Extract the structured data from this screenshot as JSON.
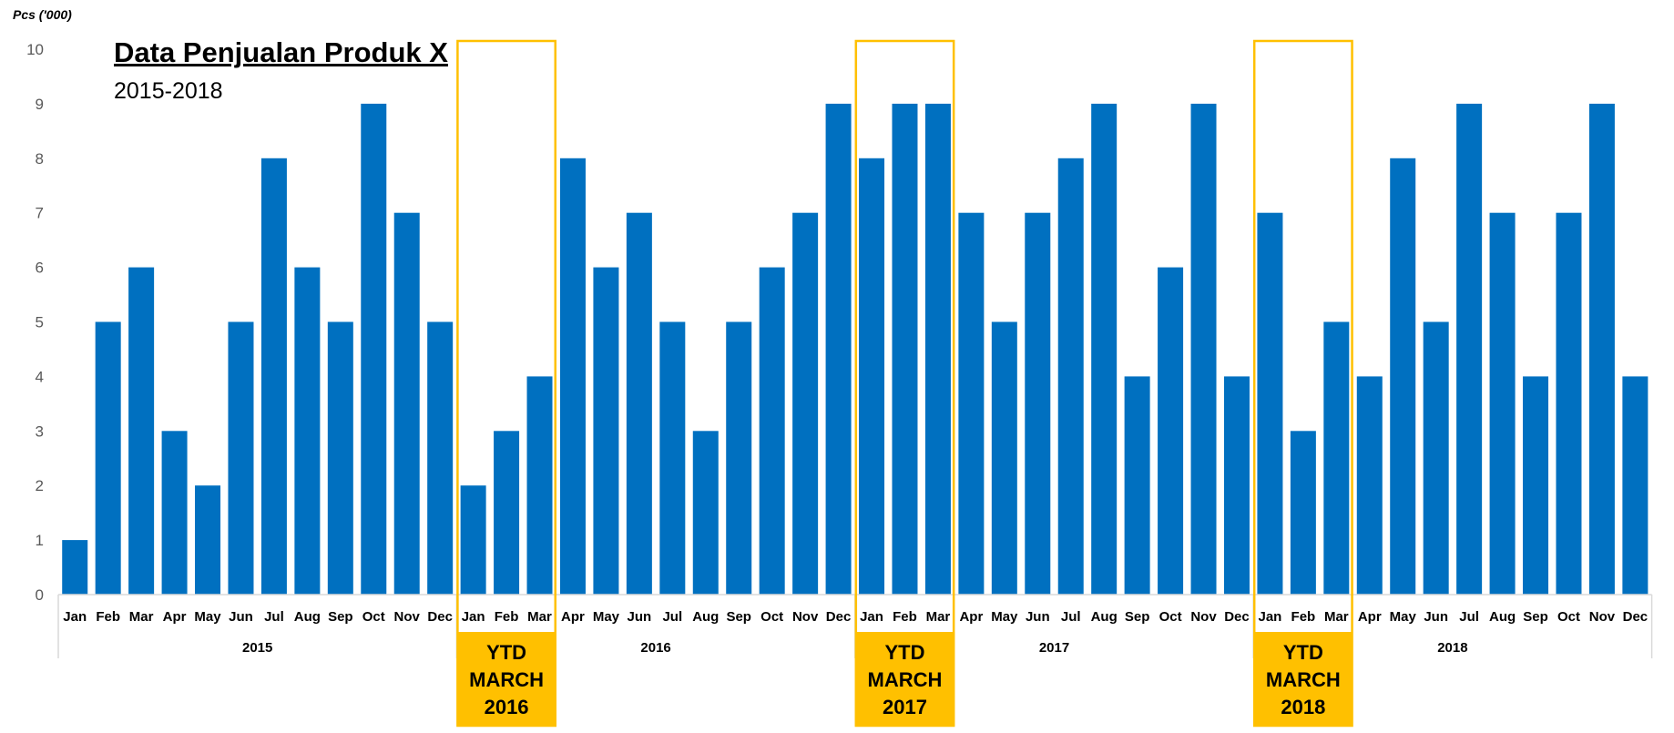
{
  "chart_data": {
    "type": "bar",
    "title": "Data Penjualan Produk X",
    "subtitle": "2015-2018",
    "ylabel": "Pcs ('000)",
    "ylim": [
      0,
      10
    ],
    "yticks": [
      0,
      1,
      2,
      3,
      4,
      5,
      6,
      7,
      8,
      9,
      10
    ],
    "grid": false,
    "bar_color": "#0070C0",
    "highlight_color": "#FFC000",
    "months": [
      "Jan",
      "Feb",
      "Mar",
      "Apr",
      "May",
      "Jun",
      "Jul",
      "Aug",
      "Sep",
      "Oct",
      "Nov",
      "Dec"
    ],
    "years": [
      {
        "year": "2015",
        "values": [
          1,
          5,
          6,
          3,
          2,
          5,
          8,
          6,
          5,
          9,
          7,
          5
        ]
      },
      {
        "year": "2016",
        "values": [
          2,
          3,
          4,
          8,
          6,
          7,
          5,
          3,
          5,
          6,
          7,
          9
        ]
      },
      {
        "year": "2017",
        "values": [
          8,
          9,
          9,
          7,
          5,
          7,
          8,
          9,
          4,
          6,
          9,
          4
        ]
      },
      {
        "year": "2018",
        "values": [
          7,
          3,
          5,
          4,
          8,
          5,
          9,
          7,
          4,
          7,
          9,
          4
        ]
      }
    ],
    "highlights": [
      {
        "year_index": 1,
        "months": [
          "Jan",
          "Feb",
          "Mar"
        ],
        "label": [
          "YTD",
          "MARCH",
          "2016"
        ]
      },
      {
        "year_index": 2,
        "months": [
          "Jan",
          "Feb",
          "Mar"
        ],
        "label": [
          "YTD",
          "MARCH",
          "2017"
        ]
      },
      {
        "year_index": 3,
        "months": [
          "Jan",
          "Feb",
          "Mar"
        ],
        "label": [
          "YTD",
          "MARCH",
          "2018"
        ]
      }
    ]
  }
}
